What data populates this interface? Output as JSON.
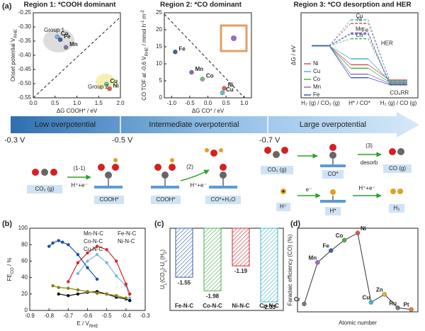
{
  "panel_labels": [
    "(a)",
    "(b)",
    "(c)",
    "(d)"
  ],
  "chart_data": [
    {
      "type": "scatter",
      "title": "Region 1: *COOH dominant",
      "xlabel": [
        "ΔG COOH* / eV"
      ],
      "ylabel": [
        "Onset potential V",
        {
          "sub": "RHE"
        }
      ],
      "x": [
        0.55,
        0.62,
        0.75,
        1.68,
        1.75
      ],
      "values": [
        -0.335,
        -0.345,
        -0.372,
        -0.502,
        -0.518
      ],
      "point_labels": [
        "Co",
        "Fe",
        "Mn",
        "Cu",
        "Ni"
      ],
      "colors": [
        "#7fb3d5",
        "#3a5fa8",
        "#8e6bb0",
        "#5fc4c4",
        "#e06060"
      ],
      "annotations": [
        "Group 1",
        "Group 2"
      ],
      "xlim": [
        0,
        2
      ],
      "xticks": [
        {
          "value": 0,
          "label": "0.0"
        },
        {
          "value": 0.5,
          "label": "0.5"
        },
        {
          "value": 1,
          "label": "1.0"
        },
        {
          "value": 1.5,
          "label": "1.5"
        },
        {
          "value": 2,
          "label": "2.0"
        }
      ],
      "ylim": [
        -0.55,
        -0.25
      ],
      "yticks": [
        {
          "value": -0.25,
          "label": "-0.25"
        },
        {
          "value": -0.3,
          "label": "-0.30"
        },
        -0.35,
        {
          "value": -0.4,
          "label": "-0.40"
        },
        -0.45,
        {
          "value": -0.5,
          "label": "-0.50"
        },
        -0.55
      ]
    },
    {
      "type": "scatter",
      "title": "Region 2: *CO dominant",
      "xlabel": [
        "ΔG CO* / eV"
      ],
      "ylabel": [
        "CO TOF at -0.6 V",
        {
          "sub": "RHE"
        },
        " / mmol h",
        {
          "sup": "-1"
        },
        " m",
        {
          "sup": "-2"
        }
      ],
      "x": [
        -0.9,
        -0.45,
        -0.15,
        0.45,
        0.4
      ],
      "values": [
        13.5,
        7.5,
        5.5,
        2.8,
        1.5
      ],
      "point_labels": [
        "Fe",
        "Mn",
        "Co",
        "Ni",
        "Cu"
      ],
      "colors": [
        "#3a5fa8",
        "#8e6bb0",
        "#6fbf73",
        "#e06060",
        "#5fc4c4"
      ],
      "xlim": [
        -1.2,
        1.2
      ],
      "xticks": [
        {
          "value": -1,
          "label": "-1.0"
        },
        -0.5,
        {
          "value": 0,
          "label": "0.0"
        },
        0.5,
        {
          "value": 1,
          "label": "1.0"
        }
      ],
      "ylim": [
        0,
        25
      ],
      "yticks": [
        0,
        5,
        10,
        15,
        20,
        25
      ]
    },
    {
      "type": "energy",
      "title": "Region 3: *CO desorption and HER",
      "ylabel": [
        "ΔG / eV"
      ],
      "categories": [
        "H₂ (g) / CO₂ (g)",
        "H* / CO*",
        "H₂ (g) / CO (g)"
      ],
      "annotations": [
        "HER",
        "CO₂RR"
      ],
      "ylim": [
        -2.2,
        1.4
      ],
      "series": [
        {
          "name": "Ni",
          "color": "#e05050",
          "values": [
            0,
            -0.8,
            -1.45
          ],
          "her_values": [
            0,
            0.95,
            -1.45
          ]
        },
        {
          "name": "Cu",
          "color": "#40b8c8",
          "values": [
            0,
            -0.55,
            -1.5
          ],
          "her_values": [
            0,
            1.1,
            -1.5
          ]
        },
        {
          "name": "Co",
          "color": "#4caf50",
          "values": [
            0,
            -0.95,
            -1.55
          ],
          "her_values": [
            0,
            0.3,
            -1.55
          ]
        },
        {
          "name": "Mn",
          "color": "#9b6bc0",
          "values": [
            0,
            -1.2,
            -1.6
          ],
          "her_values": [
            0,
            0.55,
            -1.6
          ]
        },
        {
          "name": "Fe",
          "color": "#3a5fa8",
          "values": [
            0,
            -1.35,
            -1.65
          ],
          "her_values": [
            0,
            0.5,
            -1.65
          ]
        }
      ]
    },
    {
      "type": "line",
      "xlabel": [
        "E / V",
        {
          "sub": "RHE"
        }
      ],
      "ylabel": [
        "FE",
        {
          "sub": "CO"
        },
        " / %"
      ],
      "xlim": [
        -0.9,
        -0.3
      ],
      "xticks": [
        -0.9,
        -0.8,
        -0.7,
        -0.6,
        -0.5,
        -0.4,
        -0.3
      ],
      "ylim": [
        0,
        100
      ],
      "yticks": [
        0,
        20,
        40,
        60,
        80,
        100
      ],
      "series": [
        {
          "name": "Mn-N-C",
          "color": "#7fb7e0",
          "x": [
            -0.65,
            -0.6,
            -0.55,
            -0.5,
            -0.45,
            -0.4,
            -0.38
          ],
          "values": [
            45,
            60,
            68,
            58,
            42,
            30,
            15
          ]
        },
        {
          "name": "Fe-N-C",
          "color": "#d62728",
          "x": [
            -0.7,
            -0.65,
            -0.6,
            -0.55,
            -0.5,
            -0.45,
            -0.4,
            -0.38
          ],
          "values": [
            35,
            58,
            70,
            78,
            74,
            60,
            32,
            20
          ]
        },
        {
          "name": "Co-N-C",
          "color": "#111111",
          "x": [
            -0.75,
            -0.7,
            -0.65,
            -0.6,
            -0.55,
            -0.5,
            -0.45,
            -0.4,
            -0.38
          ],
          "values": [
            20,
            18,
            20,
            22,
            23,
            20,
            16,
            14,
            12
          ]
        },
        {
          "name": "Ni-N-C",
          "color": "#1f4e9c",
          "x": [
            -0.8,
            -0.78,
            -0.75,
            -0.73,
            -0.7,
            -0.65,
            -0.6,
            -0.55
          ],
          "values": [
            78,
            82,
            85,
            83,
            80,
            68,
            52,
            38
          ]
        },
        {
          "name": "Cu-N-C",
          "color": "#8b8000",
          "x": [
            -0.78,
            -0.75,
            -0.7,
            -0.65,
            -0.6,
            -0.55,
            -0.5,
            -0.45,
            -0.4
          ],
          "values": [
            30,
            28,
            27,
            25,
            23,
            21,
            20,
            18,
            15
          ]
        }
      ]
    },
    {
      "type": "bar",
      "ylabel": [
        "U",
        {
          "sub": "L"
        },
        "(CO",
        {
          "sub": "2"
        },
        ")-U",
        {
          "sub": "L"
        },
        "(H",
        {
          "sub": "2"
        },
        ")"
      ],
      "categories": [
        "Fe-N-C",
        "Co-N-C",
        "Ni-N-C",
        "Cu-N-C"
      ],
      "values": [
        -1.55,
        -1.98,
        -1.19,
        -2.33
      ],
      "colors": [
        "#3a5fa8",
        "#4caf50",
        "#d62728",
        "#40b8c8"
      ],
      "ylim": [
        -2.6,
        0
      ]
    },
    {
      "type": "line",
      "xlabel": [
        "Atomic number"
      ],
      "ylabel": [
        "Faradaic efficiency (CO) (%)"
      ],
      "categories": [
        "Cr",
        "Mn",
        "Fe",
        "Co",
        "Ni",
        "Cu",
        "Zn",
        "Ru",
        "Pt"
      ],
      "values": [
        10,
        62,
        77,
        90,
        99,
        12,
        22,
        5,
        3
      ],
      "colors": [
        "#777777",
        "#9b6bc0",
        "#3a5fa8",
        "#4caf50",
        "#e05050",
        "#40b8c8",
        "#e0b040",
        "#777777",
        "#e08030"
      ],
      "ylim": [
        0,
        105
      ]
    }
  ],
  "banner": {
    "regions": [
      "Low overpotential",
      "Intermediate overpotential",
      "Large overpotential"
    ],
    "potentials": [
      "-0.3 V",
      "-0.5 V",
      "-0.7 V"
    ]
  },
  "scheme": {
    "labels": [
      "CO₂ (g)",
      "(1-1)",
      "H⁺+e⁻",
      "COOH*",
      "COOH*",
      "(2)",
      "H⁺+e⁻",
      "CO*+H₂O",
      "CO₂ (g)",
      "CO*",
      "(3)",
      "desorb",
      "CO (g)",
      "H⁺",
      "e⁻",
      "H*",
      "H⁺+e⁻",
      "H₂"
    ]
  }
}
